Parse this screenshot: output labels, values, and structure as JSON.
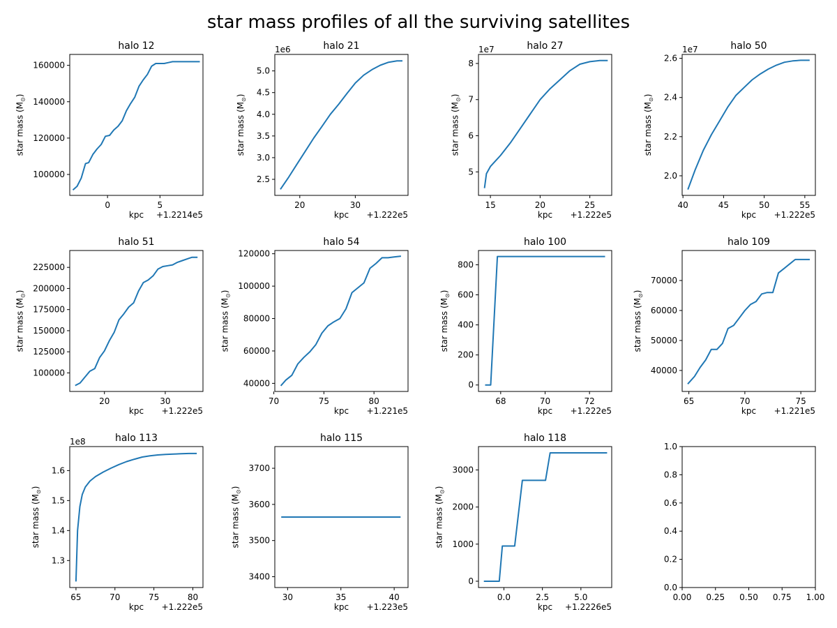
{
  "suptitle": "star mass profiles of all the surviving satellites",
  "line_color": "#1f77b4",
  "chart_data": [
    {
      "type": "line",
      "title": "halo 12",
      "xlabel": "kpc",
      "ylabel": "star mass (M$_\\odot$)",
      "ylabel_text": "star mass (M",
      "ylabel_sub": "⊙",
      "x_offset_label": "+1.2214e5",
      "y_exponent_label": "",
      "xlim": [
        -3.6,
        9.1
      ],
      "ylim": [
        88500,
        166000
      ],
      "xticks": [
        0,
        5
      ],
      "xtick_labels": [
        "0",
        "5"
      ],
      "yticks": [
        100000,
        120000,
        140000,
        160000
      ],
      "ytick_labels": [
        "100000",
        "120000",
        "140000",
        "160000"
      ],
      "x": [
        -3.3,
        -2.9,
        -2.5,
        -2.1,
        -1.8,
        -1.4,
        -1.0,
        -0.6,
        -0.2,
        0.2,
        0.6,
        1.0,
        1.4,
        1.8,
        2.2,
        2.6,
        3.0,
        3.4,
        3.8,
        4.2,
        4.6,
        5.0,
        5.4,
        5.8,
        6.2,
        6.6,
        7.0,
        7.5,
        8.0,
        8.8
      ],
      "y": [
        91500,
        93500,
        98000,
        106000,
        106500,
        111000,
        114000,
        116500,
        121000,
        121500,
        124500,
        126500,
        129500,
        135000,
        139000,
        142500,
        148500,
        152000,
        155000,
        159500,
        161000,
        161000,
        161000,
        161500,
        162000,
        162000,
        162000,
        162000,
        162000,
        162000
      ]
    },
    {
      "type": "line",
      "title": "halo 21",
      "xlabel": "kpc",
      "ylabel": "star mass (M$_\\odot$)",
      "ylabel_text": "star mass (M",
      "ylabel_sub": "⊙",
      "x_offset_label": "+1.222e5",
      "y_exponent_label": "1e6",
      "xlim": [
        15.5,
        39.5
      ],
      "ylim": [
        2.13,
        5.38
      ],
      "xticks": [
        20,
        30
      ],
      "xtick_labels": [
        "20",
        "30"
      ],
      "yticks": [
        2.5,
        3.0,
        3.5,
        4.0,
        4.5,
        5.0
      ],
      "ytick_labels": [
        "2.5",
        "3.0",
        "3.5",
        "4.0",
        "4.5",
        "5.0"
      ],
      "x": [
        16.5,
        18.0,
        19.5,
        21.0,
        22.5,
        24.0,
        25.5,
        27.0,
        28.5,
        30.0,
        31.5,
        33.0,
        34.5,
        36.0,
        37.5,
        38.5
      ],
      "y": [
        2.27,
        2.55,
        2.85,
        3.15,
        3.45,
        3.72,
        4.0,
        4.23,
        4.48,
        4.72,
        4.9,
        5.03,
        5.13,
        5.2,
        5.23,
        5.23
      ]
    },
    {
      "type": "line",
      "title": "halo 27",
      "xlabel": "kpc",
      "ylabel": "star mass (M$_\\odot$)",
      "ylabel_text": "star mass (M",
      "ylabel_sub": "⊙",
      "x_offset_label": "+1.222e5",
      "y_exponent_label": "1e7",
      "xlim": [
        13.8,
        27.2
      ],
      "ylim": [
        4.35,
        8.25
      ],
      "xticks": [
        15,
        20,
        25
      ],
      "xtick_labels": [
        "15",
        "20",
        "25"
      ],
      "yticks": [
        5,
        6,
        7,
        8
      ],
      "ytick_labels": [
        "5",
        "6",
        "7",
        "8"
      ],
      "x": [
        14.4,
        14.6,
        15.0,
        15.5,
        16.0,
        17.0,
        18.0,
        19.0,
        20.0,
        21.0,
        22.0,
        23.0,
        24.0,
        25.0,
        26.0,
        26.8
      ],
      "y": [
        4.55,
        4.95,
        5.15,
        5.3,
        5.45,
        5.8,
        6.2,
        6.6,
        7.0,
        7.3,
        7.55,
        7.8,
        7.98,
        8.05,
        8.08,
        8.08
      ]
    },
    {
      "type": "line",
      "title": "halo 50",
      "xlabel": "kpc",
      "ylabel": "star mass (M$_\\odot$)",
      "ylabel_text": "star mass (M",
      "ylabel_sub": "⊙",
      "x_offset_label": "+1.222e5",
      "y_exponent_label": "1e7",
      "xlim": [
        39.9,
        56.3
      ],
      "ylim": [
        1.9,
        2.62
      ],
      "xticks": [
        40,
        45,
        50,
        55
      ],
      "xtick_labels": [
        "40",
        "45",
        "50",
        "55"
      ],
      "yticks": [
        2.0,
        2.2,
        2.4,
        2.6
      ],
      "ytick_labels": [
        "2.0",
        "2.2",
        "2.4",
        "2.6"
      ],
      "x": [
        40.6,
        41.5,
        42.5,
        43.5,
        44.5,
        45.5,
        46.5,
        47.5,
        48.5,
        49.5,
        50.5,
        51.5,
        52.5,
        53.5,
        54.5,
        55.6
      ],
      "y": [
        1.93,
        2.03,
        2.13,
        2.21,
        2.28,
        2.35,
        2.41,
        2.45,
        2.49,
        2.52,
        2.545,
        2.565,
        2.58,
        2.587,
        2.59,
        2.59
      ]
    },
    {
      "type": "line",
      "title": "halo 51",
      "xlabel": "kpc",
      "ylabel": "star mass (M$_\\odot$)",
      "ylabel_text": "star mass (M",
      "ylabel_sub": "⊙",
      "x_offset_label": "+1.222e5",
      "y_exponent_label": "",
      "xlim": [
        14.3,
        36.2
      ],
      "ylim": [
        78000,
        245000
      ],
      "xticks": [
        20,
        30
      ],
      "xtick_labels": [
        "20",
        "30"
      ],
      "yticks": [
        100000,
        125000,
        150000,
        175000,
        200000,
        225000
      ],
      "ytick_labels": [
        "100000",
        "125000",
        "150000",
        "175000",
        "200000",
        "225000"
      ],
      "x": [
        15.2,
        16.0,
        16.8,
        17.6,
        18.4,
        19.2,
        20.0,
        20.8,
        21.6,
        22.4,
        23.2,
        24.0,
        24.8,
        25.6,
        26.4,
        27.2,
        28.0,
        28.8,
        29.6,
        30.4,
        31.2,
        32.0,
        32.8,
        33.6,
        34.4,
        35.3
      ],
      "y": [
        85000,
        88000,
        95000,
        102000,
        105000,
        118000,
        126000,
        138000,
        148000,
        163000,
        170000,
        178000,
        183000,
        197000,
        207000,
        210000,
        215000,
        223000,
        226000,
        227000,
        228000,
        231000,
        233000,
        235000,
        237000,
        237000
      ]
    },
    {
      "type": "line",
      "title": "halo 54",
      "xlabel": "kpc",
      "ylabel": "star mass (M$_\\odot$)",
      "ylabel_text": "star mass (M",
      "ylabel_sub": "⊙",
      "x_offset_label": "+1.221e5",
      "y_exponent_label": "",
      "xlim": [
        70.1,
        83.4
      ],
      "ylim": [
        35000,
        122000
      ],
      "xticks": [
        70,
        75,
        80
      ],
      "xtick_labels": [
        "70",
        "75",
        "80"
      ],
      "yticks": [
        40000,
        60000,
        80000,
        100000,
        120000
      ],
      "ytick_labels": [
        "40000",
        "60000",
        "80000",
        "100000",
        "120000"
      ],
      "x": [
        70.7,
        71.2,
        71.8,
        72.4,
        73.0,
        73.6,
        74.2,
        74.8,
        75.4,
        76.0,
        76.6,
        77.2,
        77.8,
        78.4,
        79.0,
        79.6,
        80.2,
        80.8,
        81.4,
        82.0,
        82.7
      ],
      "y": [
        38500,
        42000,
        45000,
        52000,
        56000,
        59500,
        64000,
        71000,
        75500,
        78000,
        80000,
        86000,
        96000,
        99000,
        102000,
        111000,
        114000,
        117500,
        117500,
        118000,
        118500
      ]
    },
    {
      "type": "line",
      "title": "halo 100",
      "xlabel": "kpc",
      "ylabel": "star mass (M$_\\odot$)",
      "ylabel_text": "star mass (M",
      "ylabel_sub": "⊙",
      "x_offset_label": "+1.222e5",
      "y_exponent_label": "",
      "xlim": [
        67.0,
        73.0
      ],
      "ylim": [
        -43,
        895
      ],
      "xticks": [
        68,
        70,
        72
      ],
      "xtick_labels": [
        "68",
        "70",
        "72"
      ],
      "yticks": [
        0,
        200,
        400,
        600,
        800
      ],
      "ytick_labels": [
        "0",
        "200",
        "400",
        "600",
        "800"
      ],
      "x": [
        67.3,
        67.55,
        67.85,
        72.7
      ],
      "y": [
        0,
        0,
        855,
        855
      ]
    },
    {
      "type": "line",
      "title": "halo 109",
      "xlabel": "kpc",
      "ylabel": "star mass (M$_\\odot$)",
      "ylabel_text": "star mass (M",
      "ylabel_sub": "⊙",
      "x_offset_label": "+1.221e5",
      "y_exponent_label": "",
      "xlim": [
        64.4,
        76.3
      ],
      "ylim": [
        33000,
        80000
      ],
      "xticks": [
        65,
        70,
        75
      ],
      "xtick_labels": [
        "65",
        "70",
        "75"
      ],
      "yticks": [
        40000,
        50000,
        60000,
        70000
      ],
      "ytick_labels": [
        "40000",
        "50000",
        "60000",
        "70000"
      ],
      "x": [
        64.9,
        65.5,
        66.0,
        66.5,
        67.0,
        67.5,
        68.0,
        68.5,
        69.0,
        69.5,
        70.0,
        70.5,
        71.0,
        71.5,
        72.0,
        72.5,
        73.0,
        73.5,
        74.0,
        74.5,
        75.0,
        75.8
      ],
      "y": [
        35500,
        38000,
        41000,
        43500,
        47000,
        47000,
        49000,
        54000,
        55000,
        57500,
        60000,
        62000,
        63000,
        65500,
        66000,
        66000,
        72500,
        74000,
        75500,
        77000,
        77000,
        77000
      ]
    },
    {
      "type": "line",
      "title": "halo 113",
      "xlabel": "kpc",
      "ylabel": "star mass (M$_\\odot$)",
      "ylabel_text": "star mass (M",
      "ylabel_sub": "⊙",
      "x_offset_label": "+1.222e5",
      "y_exponent_label": "1e8",
      "xlim": [
        64.2,
        81.3
      ],
      "ylim": [
        1.21,
        1.68
      ],
      "xticks": [
        65,
        70,
        75,
        80
      ],
      "xtick_labels": [
        "65",
        "70",
        "75",
        "80"
      ],
      "yticks": [
        1.3,
        1.4,
        1.5,
        1.6
      ],
      "ytick_labels": [
        "1.3",
        "1.4",
        "1.5",
        "1.6"
      ],
      "x": [
        65.0,
        65.2,
        65.5,
        65.8,
        66.2,
        66.8,
        67.5,
        68.5,
        69.5,
        70.5,
        71.5,
        72.5,
        73.5,
        74.5,
        75.5,
        76.5,
        77.5,
        78.5,
        79.5,
        80.5
      ],
      "y": [
        1.23,
        1.4,
        1.48,
        1.52,
        1.545,
        1.565,
        1.58,
        1.595,
        1.608,
        1.62,
        1.63,
        1.638,
        1.645,
        1.649,
        1.652,
        1.654,
        1.655,
        1.656,
        1.657,
        1.657
      ]
    },
    {
      "type": "line",
      "title": "halo 115",
      "xlabel": "kpc",
      "ylabel": "star mass (M$_\\odot$)",
      "ylabel_text": "star mass (M",
      "ylabel_sub": "⊙",
      "x_offset_label": "+1.223e5",
      "y_exponent_label": "",
      "xlim": [
        28.8,
        41.3
      ],
      "ylim": [
        3370,
        3760
      ],
      "xticks": [
        30,
        35,
        40
      ],
      "xtick_labels": [
        "30",
        "35",
        "40"
      ],
      "yticks": [
        3400,
        3500,
        3600,
        3700
      ],
      "ytick_labels": [
        "3400",
        "3500",
        "3600",
        "3700"
      ],
      "x": [
        29.4,
        40.6
      ],
      "y": [
        3565,
        3565
      ]
    },
    {
      "type": "line",
      "title": "halo 118",
      "xlabel": "kpc",
      "ylabel": "star mass (M$_\\odot$)",
      "ylabel_text": "star mass (M",
      "ylabel_sub": "⊙",
      "x_offset_label": "+1.2226e5",
      "y_exponent_label": "",
      "xlim": [
        -1.65,
        7.0
      ],
      "ylim": [
        -170,
        3630
      ],
      "xticks": [
        0,
        2.5,
        5
      ],
      "xtick_labels": [
        "0.0",
        "2.5",
        "5.0"
      ],
      "yticks": [
        0,
        1000,
        2000,
        3000
      ],
      "ytick_labels": [
        "0",
        "1000",
        "2000",
        "3000"
      ],
      "x": [
        -1.3,
        -0.3,
        -0.1,
        0.7,
        1.2,
        2.7,
        3.0,
        6.7
      ],
      "y": [
        0,
        0,
        950,
        950,
        2720,
        2720,
        3460,
        3460
      ]
    },
    {
      "type": "line",
      "title": "",
      "xlabel": "",
      "ylabel": "",
      "ylabel_text": "",
      "ylabel_sub": "",
      "x_offset_label": "",
      "y_exponent_label": "",
      "xlim": [
        0,
        1
      ],
      "ylim": [
        0,
        1
      ],
      "xticks": [
        0,
        0.25,
        0.5,
        0.75,
        1
      ],
      "xtick_labels": [
        "0.00",
        "0.25",
        "0.50",
        "0.75",
        "1.00"
      ],
      "yticks": [
        0,
        0.2,
        0.4,
        0.6,
        0.8,
        1
      ],
      "ytick_labels": [
        "0.0",
        "0.2",
        "0.4",
        "0.6",
        "0.8",
        "1.0"
      ],
      "x": [],
      "y": []
    }
  ]
}
